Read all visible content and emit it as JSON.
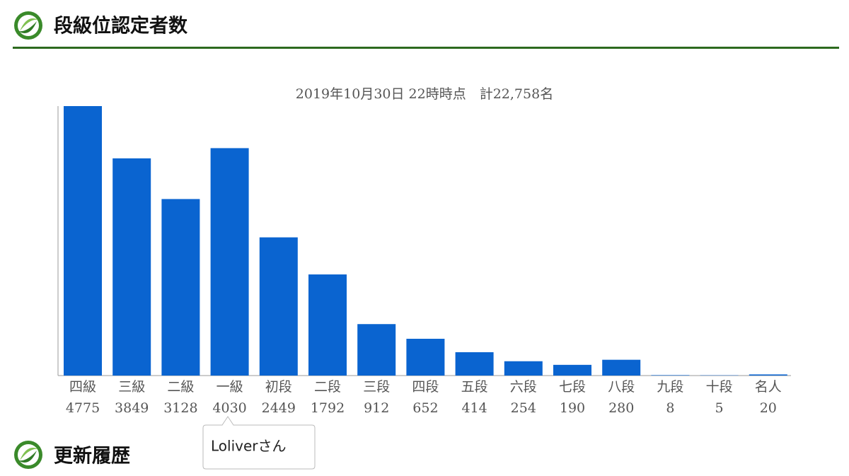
{
  "header": {
    "title": "段級位認定者数"
  },
  "chart_data": {
    "type": "bar",
    "title": "2019年10月30日  22時時点　計22,758名",
    "categories": [
      "四級",
      "三級",
      "二級",
      "一級",
      "初段",
      "二段",
      "三段",
      "四段",
      "五段",
      "六段",
      "七段",
      "八段",
      "九段",
      "十段",
      "名人"
    ],
    "values": [
      4775,
      3849,
      3128,
      4030,
      2449,
      1792,
      912,
      652,
      414,
      254,
      190,
      280,
      8,
      5,
      20
    ],
    "color": "#0a64d0"
  },
  "tooltip": {
    "text": "Loliverさん"
  },
  "section2": {
    "title": "更新履歴"
  }
}
